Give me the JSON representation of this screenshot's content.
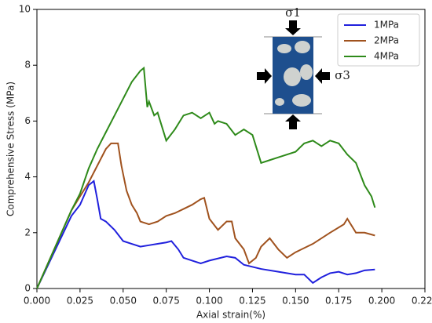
{
  "chart_data": {
    "type": "line",
    "xlabel": "Axial strain(%)",
    "ylabel": "Comprehensive Stress (MPa)",
    "annotations": [
      "σ1",
      "σ3"
    ],
    "xlim": [
      0,
      0.225
    ],
    "ylim": [
      0,
      10
    ],
    "xticks": [
      {
        "value": 0,
        "label": "0.000"
      },
      {
        "value": 0.025,
        "label": "0.025"
      },
      {
        "value": 0.05,
        "label": "0.050"
      },
      {
        "value": 0.075,
        "label": "0.075"
      },
      {
        "value": 0.1,
        "label": "0.100"
      },
      {
        "value": 0.125,
        "label": "0.125"
      },
      {
        "value": 0.15,
        "label": "0.150"
      },
      {
        "value": 0.175,
        "label": "0.175"
      },
      {
        "value": 0.2,
        "label": "0.200"
      },
      {
        "value": 0.225,
        "label": "0.225"
      }
    ],
    "yticks": [
      0,
      2,
      4,
      6,
      8,
      10
    ],
    "legend": "upper right",
    "series": [
      {
        "name": "1MPa",
        "color": "#2020dd",
        "x": [
          0,
          0.01,
          0.02,
          0.025,
          0.03,
          0.033,
          0.035,
          0.037,
          0.04,
          0.045,
          0.05,
          0.055,
          0.06,
          0.065,
          0.07,
          0.075,
          0.078,
          0.082,
          0.085,
          0.09,
          0.095,
          0.1,
          0.11,
          0.115,
          0.12,
          0.13,
          0.14,
          0.15,
          0.155,
          0.16,
          0.165,
          0.17,
          0.175,
          0.18,
          0.185,
          0.19,
          0.196
        ],
        "values": [
          0,
          1.3,
          2.6,
          3.0,
          3.7,
          3.85,
          3.2,
          2.5,
          2.4,
          2.1,
          1.7,
          1.6,
          1.5,
          1.55,
          1.6,
          1.65,
          1.7,
          1.4,
          1.1,
          1.0,
          0.9,
          1.0,
          1.15,
          1.1,
          0.85,
          0.7,
          0.6,
          0.5,
          0.5,
          0.2,
          0.4,
          0.55,
          0.6,
          0.5,
          0.55,
          0.65,
          0.68
        ]
      },
      {
        "name": "2MPa",
        "color": "#a0521e",
        "x": [
          0,
          0.01,
          0.02,
          0.025,
          0.03,
          0.035,
          0.04,
          0.043,
          0.047,
          0.049,
          0.052,
          0.055,
          0.058,
          0.06,
          0.065,
          0.07,
          0.075,
          0.08,
          0.085,
          0.09,
          0.095,
          0.097,
          0.1,
          0.105,
          0.11,
          0.113,
          0.115,
          0.12,
          0.123,
          0.127,
          0.13,
          0.135,
          0.14,
          0.145,
          0.15,
          0.16,
          0.17,
          0.178,
          0.18,
          0.185,
          0.19,
          0.196
        ],
        "values": [
          0,
          1.4,
          2.8,
          3.3,
          3.8,
          4.4,
          5.0,
          5.2,
          5.2,
          4.4,
          3.5,
          3.0,
          2.7,
          2.4,
          2.3,
          2.4,
          2.6,
          2.7,
          2.85,
          3.0,
          3.2,
          3.25,
          2.5,
          2.1,
          2.4,
          2.4,
          1.8,
          1.4,
          0.9,
          1.1,
          1.5,
          1.8,
          1.4,
          1.1,
          1.3,
          1.6,
          2.0,
          2.3,
          2.5,
          2.0,
          2.0,
          1.9
        ]
      },
      {
        "name": "4MPa",
        "color": "#2e8a1a",
        "x": [
          0,
          0.01,
          0.02,
          0.025,
          0.03,
          0.035,
          0.04,
          0.045,
          0.05,
          0.055,
          0.06,
          0.062,
          0.064,
          0.065,
          0.068,
          0.07,
          0.072,
          0.075,
          0.08,
          0.085,
          0.09,
          0.095,
          0.1,
          0.103,
          0.105,
          0.11,
          0.115,
          0.12,
          0.125,
          0.13,
          0.135,
          0.14,
          0.15,
          0.155,
          0.16,
          0.165,
          0.17,
          0.175,
          0.18,
          0.185,
          0.19,
          0.194,
          0.196
        ],
        "values": [
          0,
          1.4,
          2.8,
          3.4,
          4.3,
          5.0,
          5.6,
          6.2,
          6.8,
          7.4,
          7.8,
          7.9,
          6.5,
          6.7,
          6.2,
          6.3,
          5.9,
          5.3,
          5.7,
          6.2,
          6.3,
          6.1,
          6.3,
          5.9,
          6.0,
          5.9,
          5.5,
          5.7,
          5.5,
          4.5,
          4.6,
          4.7,
          4.9,
          5.2,
          5.3,
          5.1,
          5.3,
          5.2,
          4.8,
          4.5,
          3.7,
          3.3,
          2.9
        ]
      }
    ]
  }
}
